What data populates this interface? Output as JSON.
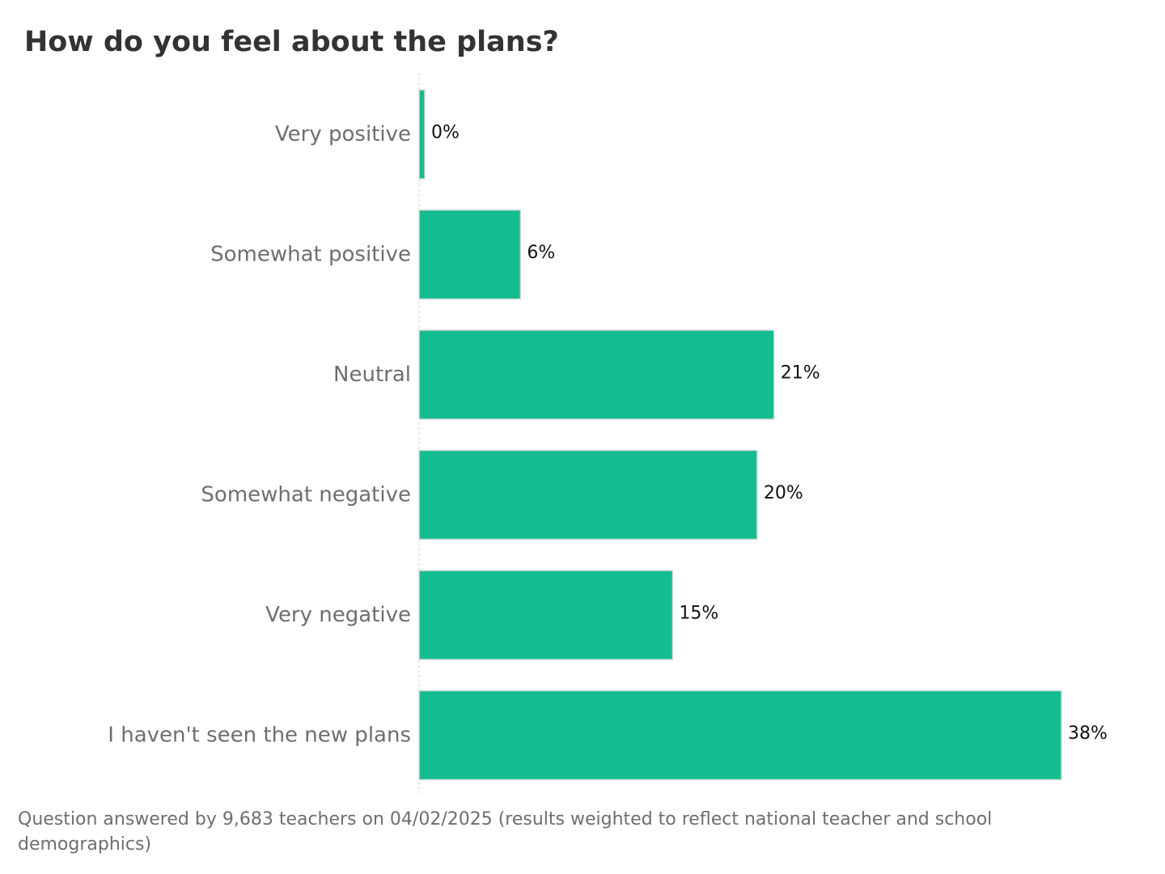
{
  "chart_data": {
    "type": "bar",
    "orientation": "horizontal",
    "title": "How do you feel about the plans?",
    "categories": [
      "Very positive",
      "Somewhat positive",
      "Neutral",
      "Somewhat negative",
      "Very negative",
      "I haven't seen the new plans"
    ],
    "values": [
      0,
      6,
      21,
      20,
      15,
      38
    ],
    "value_labels": [
      "0%",
      "6%",
      "21%",
      "20%",
      "15%",
      "38%"
    ],
    "unit": "%",
    "xlim": [
      0,
      38
    ],
    "grid": false,
    "bar_color": "#13bd90",
    "footnote": "Question answered by 9,683 teachers on 04/02/2025 (results weighted to reflect national teacher and school demographics)"
  }
}
